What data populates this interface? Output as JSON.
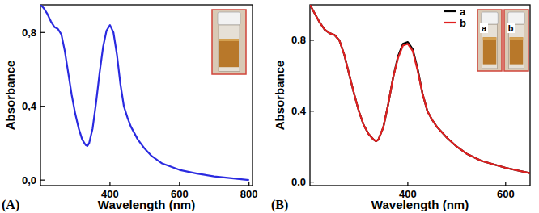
{
  "chart_data": [
    {
      "type": "line",
      "panel_label": "(A)",
      "x_label": "Wavelength (nm)",
      "y_label": "Absorbance",
      "color": "#2a2ae0",
      "x": [
        200,
        210,
        220,
        230,
        240,
        250,
        260,
        270,
        280,
        290,
        300,
        310,
        320,
        330,
        335,
        340,
        350,
        360,
        370,
        380,
        390,
        400,
        410,
        420,
        430,
        440,
        450,
        460,
        480,
        500,
        520,
        550,
        600,
        650,
        700,
        750,
        800
      ],
      "values": [
        0.95,
        0.93,
        0.9,
        0.86,
        0.83,
        0.82,
        0.79,
        0.7,
        0.58,
        0.46,
        0.36,
        0.28,
        0.22,
        0.19,
        0.185,
        0.2,
        0.28,
        0.42,
        0.58,
        0.72,
        0.81,
        0.84,
        0.8,
        0.68,
        0.52,
        0.4,
        0.34,
        0.29,
        0.22,
        0.17,
        0.13,
        0.09,
        0.055,
        0.035,
        0.02,
        0.01,
        0.0
      ],
      "xlim": [
        200,
        810
      ],
      "xticks": [
        400,
        600,
        800
      ],
      "ylim": [
        -0.03,
        0.95
      ],
      "yticks": [
        {
          "value": 0,
          "label": "0,0"
        },
        {
          "value": 0.4,
          "label": "0,4"
        },
        {
          "value": 0.8,
          "label": "0,8"
        }
      ]
    },
    {
      "type": "line",
      "panel_label": "(B)",
      "x_label": "Wavelength (nm)",
      "y_label": "Absorbance",
      "legend": "upper right",
      "inset_labels": [
        "a",
        "b"
      ],
      "x": [
        200,
        210,
        220,
        230,
        240,
        250,
        260,
        270,
        280,
        290,
        300,
        310,
        320,
        330,
        335,
        340,
        350,
        360,
        370,
        380,
        390,
        400,
        410,
        420,
        430,
        440,
        450,
        460,
        480,
        500,
        520,
        550,
        600,
        650
      ],
      "series": [
        {
          "name": "a",
          "color": "#000000",
          "values": [
            1.0,
            0.95,
            0.9,
            0.86,
            0.84,
            0.83,
            0.8,
            0.72,
            0.61,
            0.5,
            0.4,
            0.32,
            0.27,
            0.24,
            0.23,
            0.24,
            0.31,
            0.44,
            0.59,
            0.71,
            0.78,
            0.79,
            0.75,
            0.64,
            0.5,
            0.4,
            0.35,
            0.31,
            0.25,
            0.2,
            0.16,
            0.12,
            0.08,
            0.05
          ]
        },
        {
          "name": "b",
          "color": "#e02020",
          "values": [
            1.0,
            0.95,
            0.9,
            0.86,
            0.84,
            0.83,
            0.8,
            0.72,
            0.61,
            0.5,
            0.4,
            0.32,
            0.27,
            0.24,
            0.23,
            0.24,
            0.31,
            0.44,
            0.59,
            0.7,
            0.77,
            0.78,
            0.74,
            0.63,
            0.5,
            0.4,
            0.35,
            0.31,
            0.25,
            0.2,
            0.16,
            0.12,
            0.08,
            0.05
          ]
        }
      ],
      "xlim": [
        200,
        650
      ],
      "xticks": [
        400,
        600
      ],
      "ylim": [
        -0.02,
        1.0
      ],
      "yticks": [
        {
          "value": 0,
          "label": "0.0"
        },
        0.4,
        0.8
      ]
    }
  ]
}
